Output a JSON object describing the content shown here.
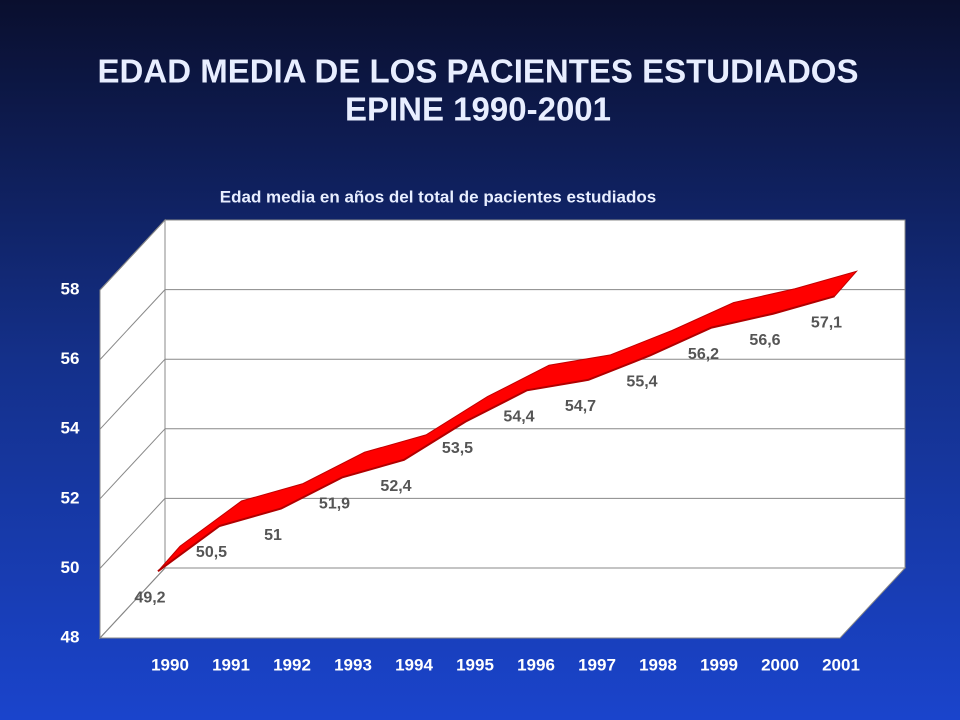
{
  "chart_data": {
    "type": "ribbon",
    "title": [
      "EDAD MEDIA DE LOS PACIENTES ESTUDIADOS",
      "EPINE 1990-2001"
    ],
    "subtitle": "Edad media en años del total de pacientes estudiados",
    "categories": [
      "1990",
      "1991",
      "1992",
      "1993",
      "1994",
      "1995",
      "1996",
      "1997",
      "1998",
      "1999",
      "2000",
      "2001"
    ],
    "values": [
      49.2,
      50.5,
      51,
      51.9,
      52.4,
      53.5,
      54.4,
      54.7,
      55.4,
      56.2,
      56.6,
      57.1
    ],
    "value_labels": [
      "49,2",
      "50,5",
      "51",
      "51,9",
      "52,4",
      "53,5",
      "54,4",
      "54,7",
      "55,4",
      "56,2",
      "56,6",
      "57,1"
    ],
    "color": "#ff0000",
    "ylim": [
      48,
      58
    ],
    "yticks": [
      48,
      50,
      52,
      54,
      56,
      58
    ],
    "grid": true
  }
}
